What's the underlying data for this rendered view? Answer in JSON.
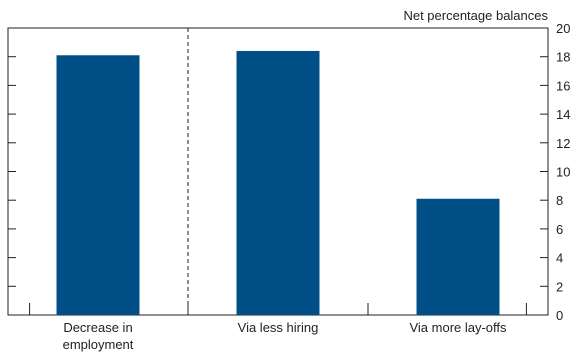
{
  "chart_data": {
    "type": "bar",
    "title": "",
    "xlabel": "",
    "ylabel": "Net percentage balances",
    "categories": [
      [
        "Decrease in",
        "employment"
      ],
      [
        "Via less hiring"
      ],
      [
        "Via more lay-offs"
      ]
    ],
    "values": [
      18.1,
      18.4,
      8.1
    ],
    "ylim": [
      0,
      20
    ],
    "yticks": [
      0,
      2,
      4,
      6,
      8,
      10,
      12,
      14,
      16,
      18,
      20
    ],
    "y_axis_side": "right",
    "grid": false,
    "divider_after_category_index": 0,
    "colors": {
      "bar": "#005087",
      "axis": "#222222",
      "divider": "#222222"
    }
  }
}
